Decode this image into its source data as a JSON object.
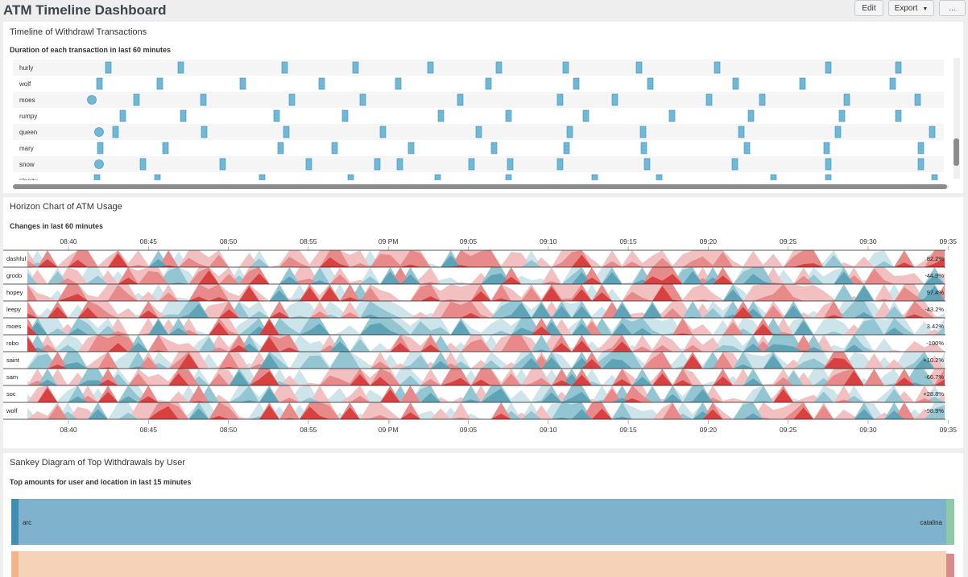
{
  "dashboard": {
    "title": "ATM Timeline Dashboard",
    "buttons": {
      "edit": "Edit",
      "export": "Export",
      "more": "..."
    }
  },
  "colors": {
    "timeline_mark": "#6fb8d8",
    "horizon_pos": [
      "#f2c0c0",
      "#e88a8a",
      "#d94040"
    ],
    "horizon_neg": [
      "#cde4ea",
      "#93c5d2",
      "#5fa3b7"
    ],
    "sankey_blue": "#7fb3cd",
    "sankey_peach": "#f6d2b9"
  },
  "timeline_panel": {
    "title": "Timeline of Withdrawl Transactions",
    "subtitle": "Duration of each transaction in last 60 minutes",
    "rows": [
      {
        "label": "hurly",
        "marks": [
          131,
          221,
          350,
          438,
          531,
          616,
          699,
          790,
          887,
          1025,
          1112
        ],
        "dots": []
      },
      {
        "label": "wolf",
        "marks": [
          120,
          195,
          298,
          396,
          491,
          603,
          712,
          804,
          910,
          993,
          1105
        ],
        "dots": []
      },
      {
        "label": "moes",
        "marks": [
          166,
          249,
          359,
          447,
          568,
          692,
          760,
          877,
          943,
          1048,
          1136
        ],
        "dots": [
          114
        ]
      },
      {
        "label": "rumpy",
        "marks": [
          149,
          224,
          340,
          425,
          544,
          628,
          724,
          831,
          929,
          1042,
          1112
        ],
        "dots": []
      },
      {
        "label": "queen",
        "marks": [
          140,
          250,
          352,
          472,
          591,
          704,
          795,
          917,
          1037,
          1154
        ],
        "dots": [
          123
        ]
      },
      {
        "label": "mary",
        "marks": [
          121,
          202,
          345,
          412,
          507,
          610,
          700,
          796,
          924,
          1023,
          1140
        ],
        "dots": []
      },
      {
        "label": "snow",
        "marks": [
          174,
          273,
          380,
          465,
          493,
          582,
          630,
          692,
          800,
          909,
          1025,
          1140
        ],
        "dots": [
          123
        ]
      },
      {
        "label": "sleezy",
        "marks": [
          117,
          192,
          322,
          432,
          540,
          628,
          735,
          815,
          957,
          1025,
          1157
        ],
        "dots": []
      }
    ]
  },
  "horizon_panel": {
    "title": "Horizon Chart of ATM Usage",
    "subtitle": "Changes in last 60 minutes",
    "time_ticks": [
      "08:40",
      "08:45",
      "08:50",
      "08:55",
      "09 PM",
      "09:05",
      "09:10",
      "09:15",
      "09:20",
      "09:25",
      "09:30",
      "09:35"
    ],
    "series": [
      {
        "name": "dashful",
        "change": "82.2%",
        "bias": 0.85
      },
      {
        "name": "grodo",
        "change": "-44.9%",
        "bias": 0.45
      },
      {
        "name": "hopey",
        "change": "97.4%",
        "bias": 0.75
      },
      {
        "name": "leepy",
        "change": "-43.2%",
        "bias": 0.4
      },
      {
        "name": "moes",
        "change": "3.42%",
        "bias": 0.2
      },
      {
        "name": "robo",
        "change": "-100%",
        "bias": 0.55
      },
      {
        "name": "saint",
        "change": "+10.2%",
        "bias": 0.4
      },
      {
        "name": "sam",
        "change": "-66.7%",
        "bias": 0.6
      },
      {
        "name": "soc",
        "change": "+28.8%",
        "bias": 0.45
      },
      {
        "name": "wolf",
        "change": "-98.9%",
        "bias": 0.5
      }
    ]
  },
  "sankey_panel": {
    "title": "Sankey Diagram of Top Withdrawals by User",
    "subtitle": "Top amounts for user and location in last 15 minutes",
    "flows": [
      {
        "source": "arc",
        "target": "catalina",
        "color": "#7fb3cd",
        "node_left": "#3f8fb3",
        "node_right": "#8fc9a8"
      },
      {
        "source": "",
        "target": "",
        "color": "#f6d2b9",
        "node_left": "#f0b58a",
        "node_right": "#d98b8b"
      }
    ]
  }
}
